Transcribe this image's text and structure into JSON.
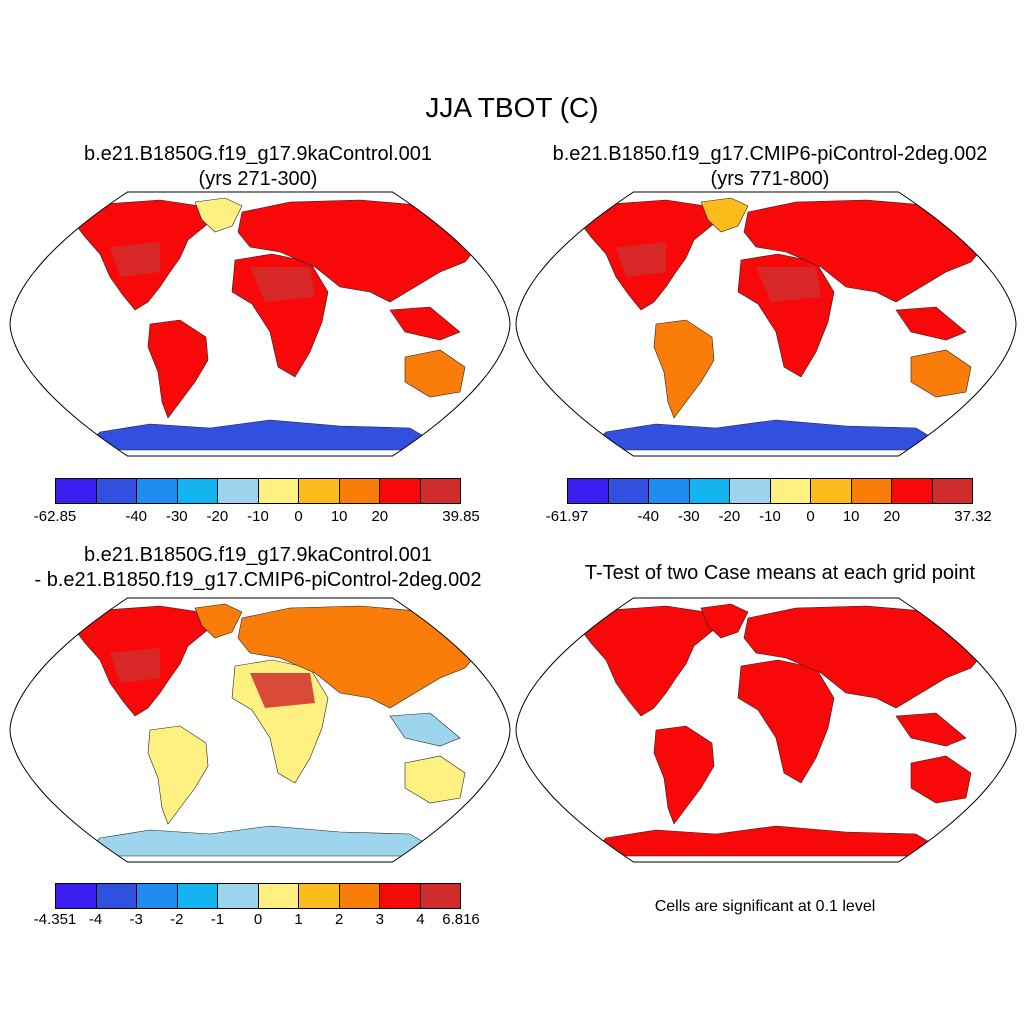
{
  "title": "JJA TBOT (C)",
  "colors": {
    "palette": [
      "#3a1ff0",
      "#3150e0",
      "#1e8cf0",
      "#14b4f0",
      "#9ed5ee",
      "#fff082",
      "#fbbc1c",
      "#fa7d0a",
      "#f80808",
      "#d22d2d"
    ],
    "land_warm": "#f80808",
    "antarctic": "#3150e0"
  },
  "panels": [
    {
      "title_line1": "b.e21.B1850G.f19_g17.9kaControl.001",
      "title_line2": "(yrs 271-300)",
      "colorbar": {
        "labels": [
          "-62.85",
          "-40",
          "-30",
          "-20",
          "-10",
          "0",
          "10",
          "20",
          "39.85"
        ]
      }
    },
    {
      "title_line1": "b.e21.B1850.f19_g17.CMIP6-piControl-2deg.002",
      "title_line2": "(yrs 771-800)",
      "colorbar": {
        "labels": [
          "-61.97",
          "-40",
          "-30",
          "-20",
          "-10",
          "0",
          "10",
          "20",
          "37.32"
        ]
      }
    },
    {
      "title_line1": "b.e21.B1850G.f19_g17.9kaControl.001",
      "title_line2": "- b.e21.B1850.f19_g17.CMIP6-piControl-2deg.002",
      "colorbar": {
        "labels": [
          "-4.351",
          "-4",
          "-3",
          "-2",
          "-1",
          "0",
          "1",
          "2",
          "3",
          "4",
          "6.816"
        ]
      }
    },
    {
      "title_line1": "T-Test of two Case means at each grid point",
      "note": "Cells are significant at 0.1 level"
    }
  ]
}
